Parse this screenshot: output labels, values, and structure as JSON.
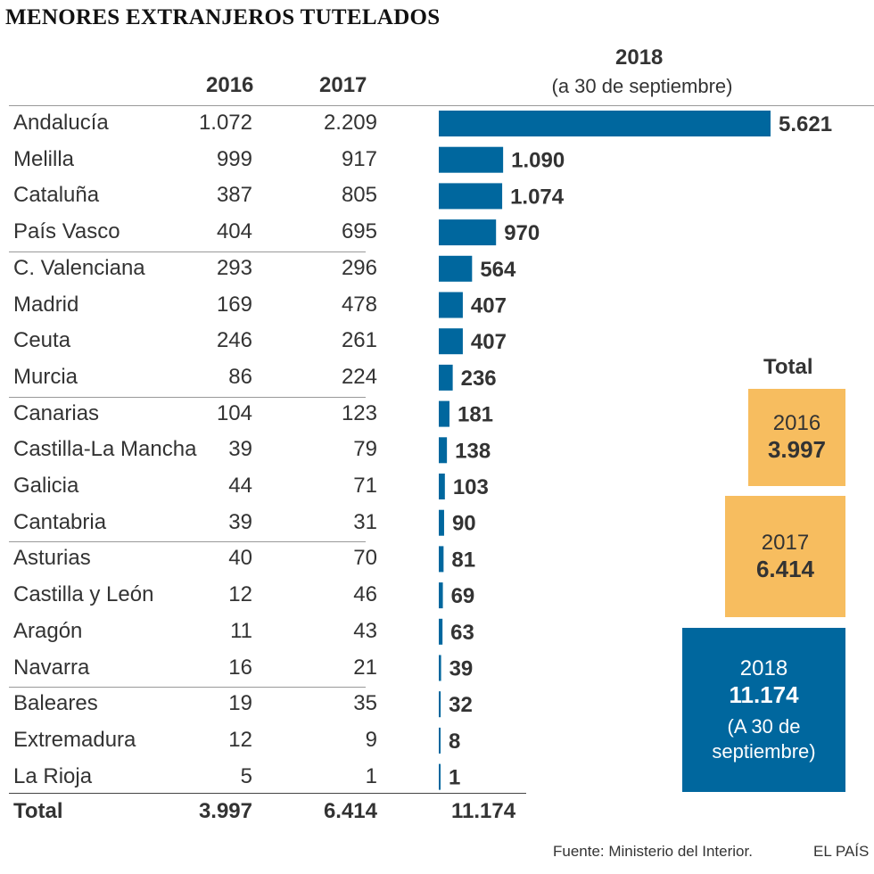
{
  "title": "MENORES EXTRANJEROS TUTELADOS",
  "headers": {
    "y2016": "2016",
    "y2017": "2017",
    "y2018": "2018",
    "y2018_note": "(a 30 de septiembre)"
  },
  "chart_data": {
    "type": "bar",
    "orientation": "horizontal",
    "title": "MENORES EXTRANJEROS TUTELADOS",
    "columns": [
      "2016",
      "2017",
      "2018 (a 30 de septiembre)"
    ],
    "categories": [
      "Andalucía",
      "Melilla",
      "Cataluña",
      "País Vasco",
      "C. Valenciana",
      "Madrid",
      "Ceuta",
      "Murcia",
      "Canarias",
      "Castilla-La Mancha",
      "Galicia",
      "Cantabria",
      "Asturias",
      "Castilla y León",
      "Aragón",
      "Navarra",
      "Baleares",
      "Extremadura",
      "La Rioja"
    ],
    "values_2016": [
      "1.072",
      "999",
      "387",
      "404",
      "293",
      "169",
      "246",
      "86",
      "104",
      "39",
      "44",
      "39",
      "40",
      "12",
      "11",
      "16",
      "19",
      "12",
      "5"
    ],
    "values_2017": [
      "2.209",
      "917",
      "805",
      "695",
      "296",
      "478",
      "261",
      "224",
      "123",
      "79",
      "71",
      "31",
      "70",
      "46",
      "43",
      "21",
      "35",
      "9",
      "1"
    ],
    "series": [
      {
        "name": "2018",
        "values": [
          5621,
          1090,
          1074,
          970,
          564,
          407,
          407,
          236,
          181,
          138,
          103,
          90,
          81,
          69,
          63,
          39,
          32,
          8,
          1
        ]
      }
    ],
    "labels_2018": [
      "5.621",
      "1.090",
      "1.074",
      "970",
      "564",
      "407",
      "407",
      "236",
      "181",
      "138",
      "103",
      "90",
      "81",
      "69",
      "63",
      "39",
      "32",
      "8",
      "1"
    ],
    "xlim": [
      0,
      5621
    ],
    "bar_color": "#00679e"
  },
  "totals_row": {
    "label": "Total",
    "y2016": "3.997",
    "y2017": "6.414",
    "y2018": "11.174"
  },
  "totals_boxes": {
    "heading": "Total",
    "box2016": {
      "year": "2016",
      "value": "3.997",
      "color": "#f7bd5f"
    },
    "box2017": {
      "year": "2017",
      "value": "6.414",
      "color": "#f7bd5f"
    },
    "box2018": {
      "year": "2018",
      "value": "11.174",
      "note": "(A 30 de septiembre)",
      "color": "#00679e"
    }
  },
  "footer": {
    "source": "Fuente: Ministerio del Interior.",
    "brand": "EL PAÍS"
  }
}
